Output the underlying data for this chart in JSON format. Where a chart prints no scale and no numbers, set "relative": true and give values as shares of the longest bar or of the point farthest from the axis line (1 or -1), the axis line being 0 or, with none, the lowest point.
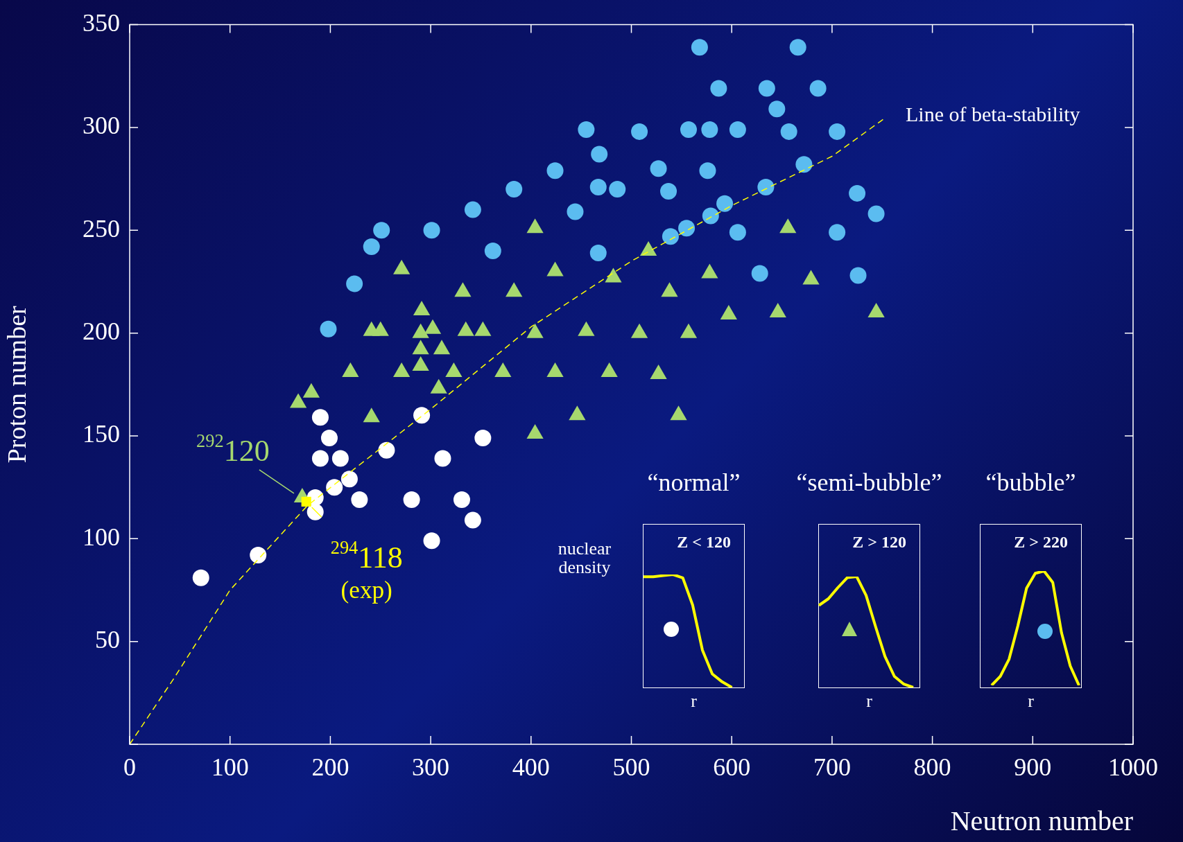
{
  "chart_data": [
    {
      "type": "scatter",
      "xlabel": "Neutron number",
      "ylabel": "Proton number",
      "xlim": [
        0,
        1000
      ],
      "xticks": [
        0,
        100,
        200,
        300,
        400,
        500,
        600,
        700,
        800,
        900,
        1000
      ],
      "ylim": [
        0,
        350
      ],
      "yticks": [
        {
          "value": 0,
          "label": null
        },
        50,
        100,
        150,
        200,
        250,
        300,
        350
      ],
      "legend": false,
      "grid": false,
      "series": [
        {
          "color": "#ffffff",
          "marker": "circle",
          "x": [
            71,
            128,
            190,
            199,
            190,
            210,
            219,
            204,
            229,
            185,
            185,
            256,
            291,
            281,
            312,
            352,
            331,
            342,
            301
          ],
          "values": [
            81,
            92,
            159,
            149,
            139,
            139,
            129,
            125,
            119,
            120,
            113,
            143,
            160,
            119,
            139,
            149,
            119,
            109,
            99
          ]
        },
        {
          "color": "#a6d86e",
          "marker": "triangle",
          "x": [
            168,
            181,
            220,
            241,
            250,
            241,
            271,
            271,
            291,
            290,
            290,
            290,
            302,
            311,
            308,
            323,
            332,
            335,
            352,
            372,
            383,
            404,
            404,
            404,
            424,
            424,
            446,
            455,
            482,
            478,
            508,
            517,
            527,
            538,
            557,
            547,
            578,
            597,
            646,
            656,
            679,
            744,
            172
          ],
          "values": [
            166,
            171,
            181,
            201,
            201,
            159,
            231,
            181,
            211,
            200,
            192,
            184,
            202,
            192,
            173,
            181,
            220,
            201,
            201,
            181,
            220,
            251,
            200,
            151,
            230,
            181,
            160,
            201,
            227,
            181,
            200,
            240,
            180,
            220,
            200,
            160,
            229,
            209,
            210,
            251,
            226,
            210,
            120
          ]
        },
        {
          "color": "#5bbcf0",
          "marker": "circle",
          "x": [
            198,
            224,
            241,
            251,
            301,
            342,
            362,
            383,
            424,
            444,
            455,
            467,
            468,
            467,
            486,
            508,
            527,
            537,
            539,
            555,
            557,
            568,
            576,
            579,
            578,
            587,
            593,
            606,
            606,
            628,
            634,
            635,
            645,
            657,
            666,
            672,
            686,
            705,
            705,
            725,
            726,
            744
          ],
          "values": [
            202,
            224,
            242,
            250,
            250,
            260,
            240,
            270,
            279,
            259,
            299,
            239,
            287,
            271,
            270,
            298,
            280,
            269,
            247,
            251,
            299,
            339,
            279,
            257,
            299,
            319,
            263,
            249,
            299,
            229,
            271,
            319,
            309,
            298,
            339,
            282,
            319,
            298,
            249,
            268,
            228,
            258
          ]
        },
        {
          "color": "#ffff00",
          "marker": "square",
          "x": [
            176
          ],
          "values": [
            118
          ]
        },
        {
          "type": "line",
          "color": "#ffff00",
          "marker": "none",
          "line_style": "dashed",
          "x": [
            0,
            44,
            100,
            177,
            300,
            400,
            500,
            600,
            700,
            754
          ],
          "values": [
            0,
            32,
            75,
            116,
            163,
            203,
            235,
            262,
            286,
            305
          ]
        }
      ],
      "annotations": [
        {
          "text": "$^{292}$120",
          "x": 172,
          "y": 120
        },
        {
          "text": "$^{294}$118 (exp)",
          "x": 176,
          "y": 118
        },
        {
          "text": "Line of beta-stability",
          "x": 754,
          "y": 305
        }
      ]
    },
    {
      "type": "line",
      "title": "“normal”",
      "xlabel": "r",
      "ylabel": "nuclear density",
      "relative": true,
      "marker": "none",
      "categories": [
        null,
        null,
        null,
        null,
        null,
        null,
        null,
        null,
        null,
        null
      ],
      "series": [
        {
          "color": "#ffff00",
          "values": [
            0.98,
            0.98,
            0.99,
            1,
            0.97,
            0.73,
            0.33,
            0.12,
            0.05,
            0
          ]
        }
      ],
      "annotations": [
        "Z < 120"
      ]
    },
    {
      "type": "line",
      "title": "“semi-bubble”",
      "xlabel": "r",
      "relative": true,
      "marker": "none",
      "categories": [
        null,
        null,
        null,
        null,
        null,
        null,
        null,
        null,
        null,
        null,
        null
      ],
      "series": [
        {
          "color": "#ffff00",
          "values": [
            0.74,
            0.8,
            0.9,
            0.99,
            1,
            0.83,
            0.55,
            0.28,
            0.1,
            0.03,
            0
          ]
        }
      ],
      "annotations": [
        "Z > 120"
      ]
    },
    {
      "type": "line",
      "title": "“bubble”",
      "xlabel": "r",
      "relative": true,
      "marker": "none",
      "categories": [
        null,
        null,
        null,
        null,
        null,
        null,
        null,
        null,
        null,
        null,
        null
      ],
      "series": [
        {
          "color": "#ffff00",
          "values": [
            0,
            0.08,
            0.23,
            0.52,
            0.85,
            0.98,
            1,
            0.9,
            0.46,
            0.17,
            0
          ]
        }
      ],
      "annotations": [
        "Z > 220"
      ]
    }
  ]
}
